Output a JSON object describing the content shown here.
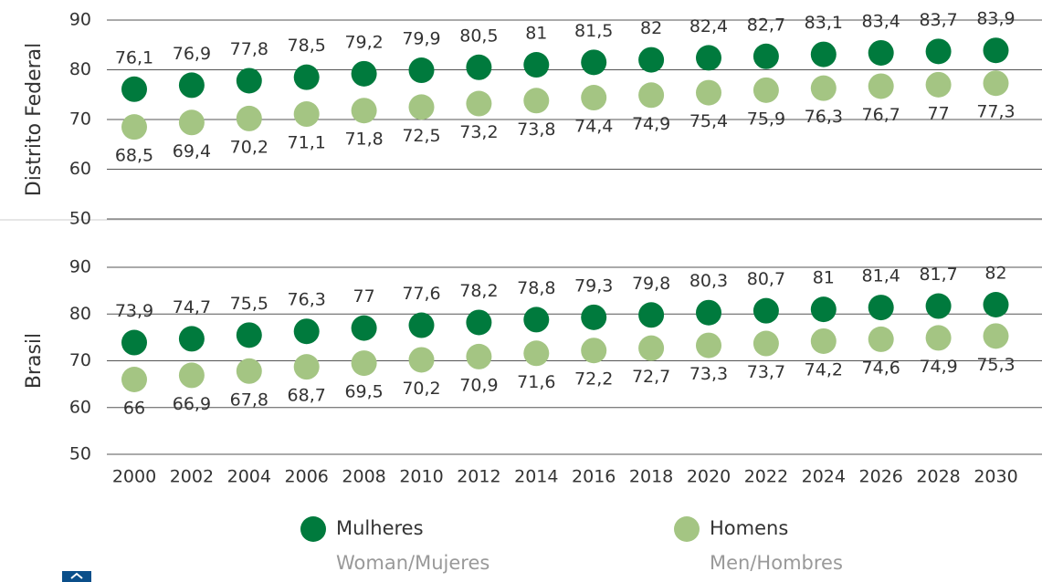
{
  "chart_data": {
    "type": "dot",
    "categories": [
      "2000",
      "2002",
      "2004",
      "2006",
      "2008",
      "2010",
      "2012",
      "2014",
      "2016",
      "2018",
      "2020",
      "2022",
      "2024",
      "2026",
      "2028",
      "2030"
    ],
    "legend": [
      {
        "name": "Mulheres",
        "subtitle": "Woman/Mujeres",
        "color": "#007a3d"
      },
      {
        "name": "Homens",
        "subtitle": "Men/Hombres",
        "color": "#a4c583"
      }
    ],
    "panels": [
      {
        "y_label": "Distrito Federal",
        "ylim": [
          50,
          90
        ],
        "yticks": [
          50,
          60,
          70,
          80,
          90
        ],
        "grid": true,
        "series": [
          {
            "values": [
              76.1,
              76.9,
              77.8,
              78.5,
              79.2,
              79.9,
              80.5,
              81,
              81.5,
              82,
              82.4,
              82.7,
              83.1,
              83.4,
              83.7,
              83.9
            ],
            "value_labels": [
              "76,1",
              "76,9",
              "77,8",
              "78,5",
              "79,2",
              "79,9",
              "80,5",
              "81",
              "81,5",
              "82",
              "82,4",
              "82,7",
              "83,1",
              "83,4",
              "83,7",
              "83,9"
            ]
          },
          {
            "values": [
              68.5,
              69.4,
              70.2,
              71.1,
              71.8,
              72.5,
              73.2,
              73.8,
              74.4,
              74.9,
              75.4,
              75.9,
              76.3,
              76.7,
              77,
              77.3
            ],
            "value_labels": [
              "68,5",
              "69,4",
              "70,2",
              "71,1",
              "71,8",
              "72,5",
              "73,2",
              "73,8",
              "74,4",
              "74,9",
              "75,4",
              "75,9",
              "76,3",
              "76,7",
              "77",
              "77,3"
            ]
          }
        ]
      },
      {
        "y_label": "Brasil",
        "ylim": [
          50,
          90
        ],
        "yticks": [
          50,
          60,
          70,
          80,
          90
        ],
        "grid": true,
        "series": [
          {
            "values": [
              73.9,
              74.7,
              75.5,
              76.3,
              77,
              77.6,
              78.2,
              78.8,
              79.3,
              79.8,
              80.3,
              80.7,
              81,
              81.4,
              81.7,
              82
            ],
            "value_labels": [
              "73,9",
              "74,7",
              "75,5",
              "76,3",
              "77",
              "77,6",
              "78,2",
              "78,8",
              "79,3",
              "79,8",
              "80,3",
              "80,7",
              "81",
              "81,4",
              "81,7",
              "82"
            ]
          },
          {
            "values": [
              66,
              66.9,
              67.8,
              68.7,
              69.5,
              70.2,
              70.9,
              71.6,
              72.2,
              72.7,
              73.3,
              73.7,
              74.2,
              74.6,
              74.9,
              75.3
            ],
            "value_labels": [
              "66",
              "66,9",
              "67,8",
              "68,7",
              "69,5",
              "70,2",
              "70,9",
              "71,6",
              "72,2",
              "72,7",
              "73,3",
              "73,7",
              "74,2",
              "74,6",
              "74,9",
              "75,3"
            ]
          }
        ]
      }
    ]
  }
}
